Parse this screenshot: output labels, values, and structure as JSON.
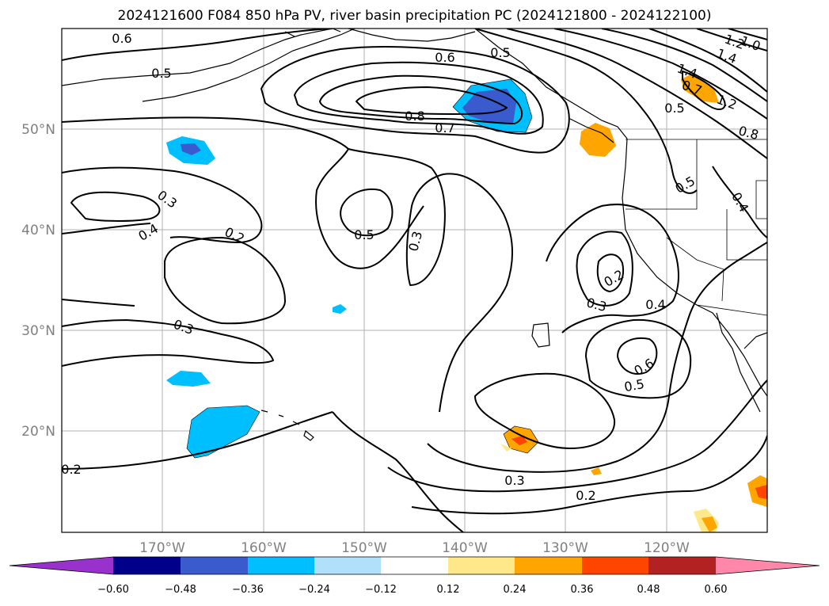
{
  "title": "2024121600 F084 850 hPa PV, river basin precipitation PC (2024121800 - 2024122100)",
  "lat_labels": [
    {
      "text": "50°N",
      "lat": 50
    },
    {
      "text": "40°N",
      "lat": 40
    },
    {
      "text": "30°N",
      "lat": 30
    },
    {
      "text": "20°N",
      "lat": 20
    }
  ],
  "lon_labels": [
    {
      "text": "170°W",
      "lon": -170
    },
    {
      "text": "160°W",
      "lon": -160
    },
    {
      "text": "150°W",
      "lon": -150
    },
    {
      "text": "140°W",
      "lon": -140
    },
    {
      "text": "130°W",
      "lon": -130
    },
    {
      "text": "120°W",
      "lon": -120
    }
  ],
  "contour_labels": [
    {
      "text": "0.6"
    },
    {
      "text": "0.5"
    },
    {
      "text": "0.6"
    },
    {
      "text": "0.5"
    },
    {
      "text": "0.8"
    },
    {
      "text": "0.7"
    },
    {
      "text": "1.0"
    },
    {
      "text": "1.2"
    },
    {
      "text": "1.4"
    },
    {
      "text": "1.4"
    },
    {
      "text": "1.2"
    },
    {
      "text": "0.7"
    },
    {
      "text": "0.5"
    },
    {
      "text": "0.8"
    },
    {
      "text": "0.5"
    },
    {
      "text": "0.4"
    },
    {
      "text": "0.3"
    },
    {
      "text": "0.4"
    },
    {
      "text": "0.2"
    },
    {
      "text": "0.5"
    },
    {
      "text": "0.3"
    },
    {
      "text": "0.2"
    },
    {
      "text": "0.3"
    },
    {
      "text": "0.4"
    },
    {
      "text": "0.3"
    },
    {
      "text": "0.6"
    },
    {
      "text": "0.5"
    },
    {
      "text": "0.3"
    },
    {
      "text": "0.2"
    },
    {
      "text": "0.2"
    }
  ],
  "colorbar": {
    "colors": [
      "#9932cc",
      "#00008b",
      "#3a5bcd",
      "#00bfff",
      "#b0e0fa",
      "#ffffff",
      "#ffe88a",
      "#ffa500",
      "#ff4500",
      "#b22222",
      "#ff88aa"
    ],
    "tick_labels": [
      "−0.60",
      "−0.48",
      "−0.36",
      "−0.24",
      "−0.12",
      "0.12",
      "0.24",
      "0.36",
      "0.48",
      "0.60"
    ]
  }
}
